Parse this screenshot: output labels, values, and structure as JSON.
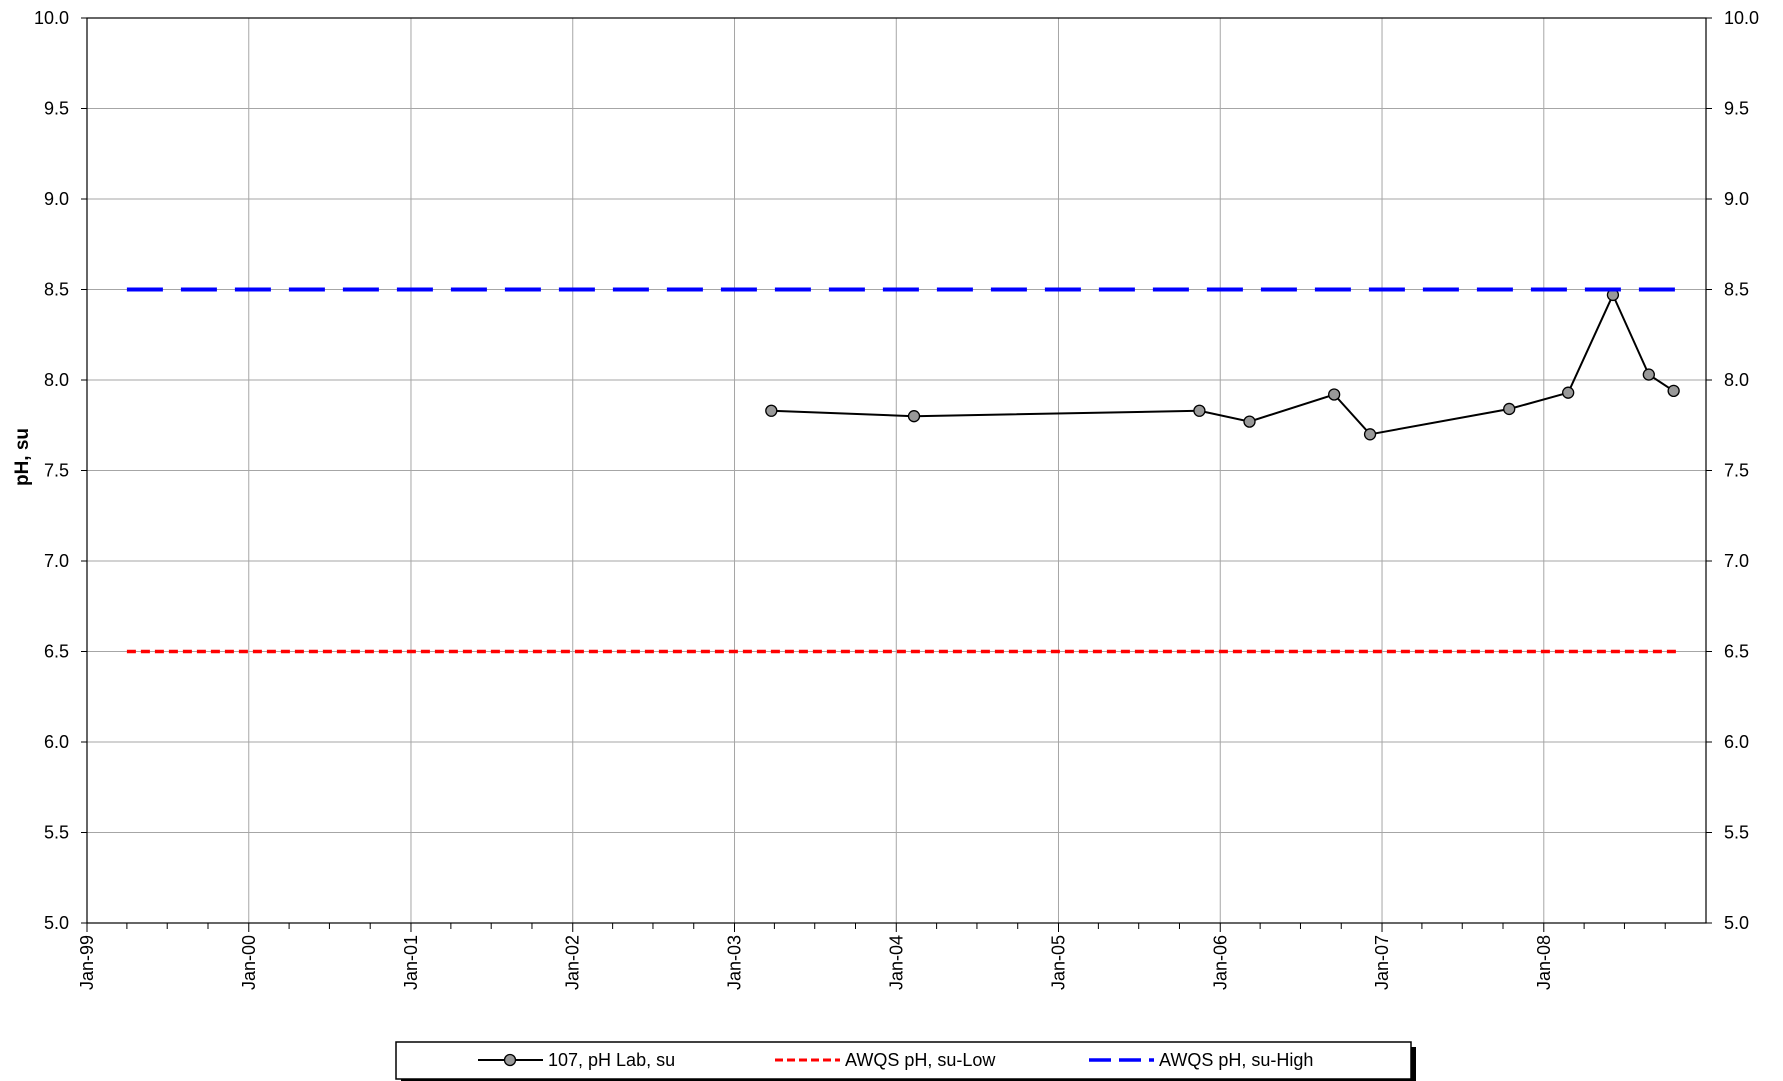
{
  "chart_data": {
    "type": "line",
    "x_type": "date",
    "xlim": [
      "1999-01-01",
      "2009-01-01"
    ],
    "x_ticks": [
      "1999-01-01",
      "2000-01-01",
      "2001-01-01",
      "2002-01-01",
      "2003-01-01",
      "2004-01-01",
      "2005-01-01",
      "2006-01-01",
      "2007-01-01",
      "2008-01-01"
    ],
    "x_tick_labels": [
      "Jan-99",
      "Jan-00",
      "Jan-01",
      "Jan-02",
      "Jan-03",
      "Jan-04",
      "Jan-05",
      "Jan-06",
      "Jan-07",
      "Jan-08"
    ],
    "ylim": [
      5.0,
      10.0
    ],
    "y_ticks": [
      5.0,
      5.5,
      6.0,
      6.5,
      7.0,
      7.5,
      8.0,
      8.5,
      9.0,
      9.5,
      10.0
    ],
    "y_tick_labels": [
      "5.0",
      "5.5",
      "6.0",
      "6.5",
      "7.0",
      "7.5",
      "8.0",
      "8.5",
      "9.0",
      "9.5",
      "10.0"
    ],
    "ylabel": "pH, su",
    "xlabel": "",
    "title": "",
    "grid": true,
    "secondary_y_axis": true,
    "legend_position": "bottom",
    "series": [
      {
        "name": "107, pH Lab, su",
        "color": "#000000",
        "marker": "circle",
        "marker_fill": "#999999",
        "line_style": "solid",
        "x": [
          "2003-03-25",
          "2004-02-10",
          "2005-11-15",
          "2006-03-08",
          "2006-09-15",
          "2006-12-05",
          "2007-10-15",
          "2008-02-25",
          "2008-06-05",
          "2008-08-25",
          "2008-10-20"
        ],
        "y": [
          7.83,
          7.8,
          7.83,
          7.77,
          7.92,
          7.7,
          7.84,
          7.93,
          8.47,
          8.03,
          7.94
        ]
      },
      {
        "name": "AWQS pH, su-Low",
        "color": "#ff0000",
        "marker": "none",
        "line_style": "short-dash",
        "x": [
          "1999-04-01",
          "2008-10-25"
        ],
        "y": [
          6.5,
          6.5
        ]
      },
      {
        "name": "AWQS pH, su-High",
        "color": "#0000ff",
        "marker": "none",
        "line_style": "long-dash",
        "x": [
          "1999-04-01",
          "2008-10-25"
        ],
        "y": [
          8.5,
          8.5
        ]
      }
    ]
  }
}
